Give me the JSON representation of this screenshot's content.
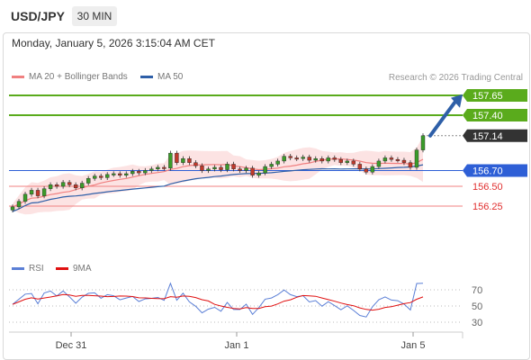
{
  "header": {
    "symbol": "USD/JPY",
    "timeframe": "30 MIN"
  },
  "datetime": "Monday, January 5, 2026 3:15:04 AM CET",
  "legend": {
    "ma_bb": {
      "label": "MA 20 + Bollinger Bands",
      "color": "#f08080"
    },
    "ma50": {
      "label": "MA 50",
      "color": "#2e5fa8"
    },
    "rsi": {
      "label": "RSI",
      "color": "#5b7fd6"
    },
    "ma9": {
      "label": "9MA",
      "color": "#e01010"
    }
  },
  "credit": "Research © 2026 Trading Central",
  "chart_data": {
    "type": "candlestick",
    "levels": [
      {
        "label": "157.65",
        "value": 157.65,
        "style": "resistance",
        "color": "#5aab1c"
      },
      {
        "label": "157.40",
        "value": 157.4,
        "style": "resistance",
        "color": "#5aab1c"
      },
      {
        "label": "157.14",
        "value": 157.14,
        "style": "current",
        "color": "#333333"
      },
      {
        "label": "156.70",
        "value": 156.7,
        "style": "pivot",
        "color": "#2e5fd6"
      },
      {
        "label": "156.50",
        "value": 156.5,
        "style": "support",
        "color": "#e03030"
      },
      {
        "label": "156.25",
        "value": 156.25,
        "style": "support",
        "color": "#e03030"
      }
    ],
    "x_labels": [
      "Dec 31",
      "Jan 1",
      "Jan 5"
    ],
    "rsi_levels": [
      "70",
      "50",
      "30"
    ],
    "closes": [
      156.24,
      156.31,
      156.4,
      156.45,
      156.38,
      156.47,
      156.52,
      156.5,
      156.55,
      156.52,
      156.48,
      156.54,
      156.6,
      156.63,
      156.61,
      156.65,
      156.66,
      156.64,
      156.66,
      156.69,
      156.67,
      156.7,
      156.72,
      156.74,
      156.73,
      156.92,
      156.8,
      156.85,
      156.8,
      156.76,
      156.7,
      156.72,
      156.74,
      156.71,
      156.78,
      156.72,
      156.7,
      156.73,
      156.64,
      156.67,
      156.75,
      156.78,
      156.82,
      156.88,
      156.86,
      156.85,
      156.87,
      156.83,
      156.85,
      156.82,
      156.86,
      156.84,
      156.8,
      156.82,
      156.78,
      156.72,
      156.68,
      156.75,
      156.82,
      156.86,
      156.84,
      156.83,
      156.8,
      156.74,
      156.96,
      157.14
    ],
    "annotation": "arrow-up"
  }
}
